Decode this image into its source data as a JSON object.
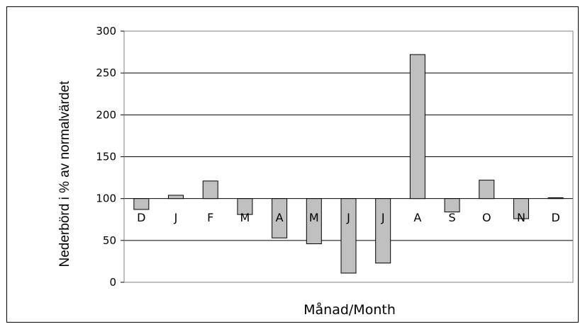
{
  "chart_data": {
    "type": "bar",
    "categories": [
      "D",
      "J",
      "F",
      "M",
      "A",
      "M",
      "J",
      "J",
      "A",
      "S",
      "O",
      "N",
      "D"
    ],
    "values": [
      87,
      104,
      121,
      81,
      53,
      46,
      11,
      23,
      272,
      84,
      122,
      76,
      101
    ],
    "baseline": 100,
    "xlabel": "Månad/Month",
    "ylabel": "Nederbörd i % av normalvärdet",
    "ylim": [
      0,
      300
    ],
    "yticks": [
      0,
      50,
      100,
      150,
      200,
      250,
      300
    ],
    "grid": true,
    "bar_color": "#c0c0c0"
  }
}
